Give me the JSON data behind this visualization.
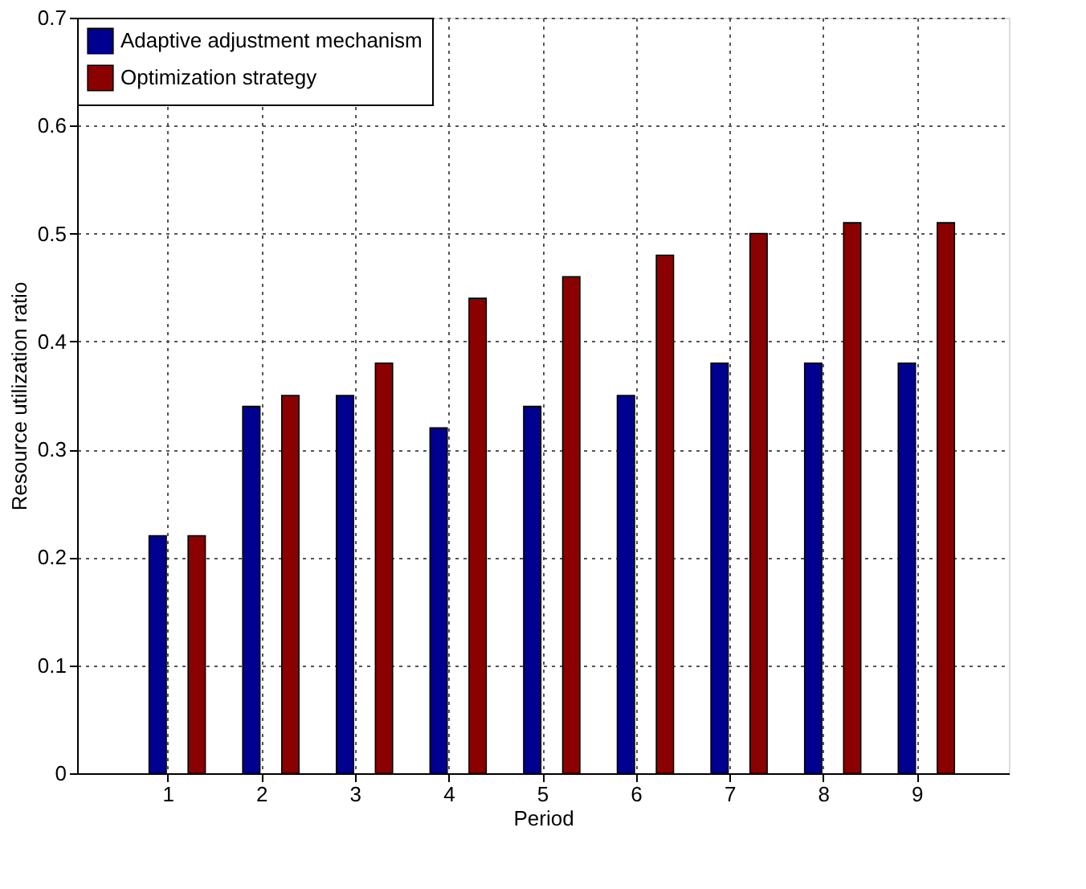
{
  "chart_data": {
    "type": "bar",
    "xlabel": "Period",
    "ylabel": "Resource utilization ratio",
    "categories": [
      "1",
      "2",
      "3",
      "4",
      "5",
      "6",
      "7",
      "8",
      "9"
    ],
    "series": [
      {
        "name": "Adaptive adjustment mechanism",
        "color": "#000090",
        "values": [
          0.22,
          0.34,
          0.35,
          0.32,
          0.34,
          0.35,
          0.38,
          0.38,
          0.38
        ]
      },
      {
        "name": "Optimization strategy",
        "color": "#8b0000",
        "values": [
          0.22,
          0.35,
          0.38,
          0.44,
          0.46,
          0.48,
          0.5,
          0.51,
          0.51
        ]
      }
    ],
    "ylim": [
      0,
      0.7
    ],
    "yticks": [
      0,
      0.1,
      0.2,
      0.3,
      0.4,
      0.5,
      0.6,
      0.7
    ],
    "grid": true,
    "legend": "top left"
  }
}
